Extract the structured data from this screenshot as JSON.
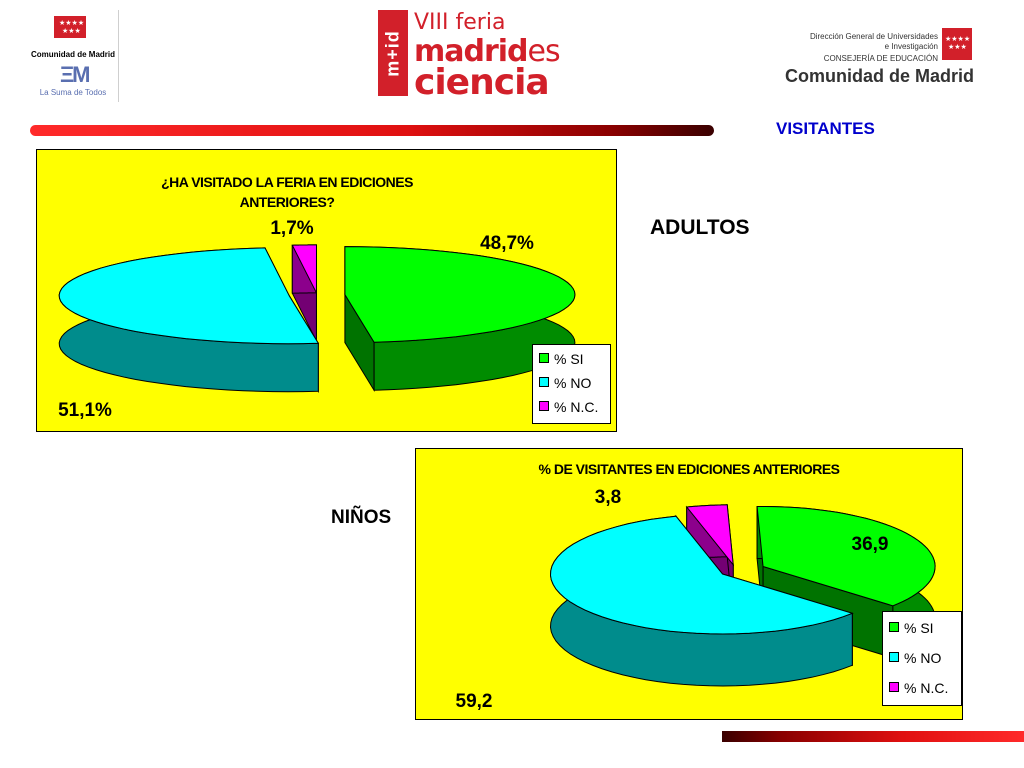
{
  "header": {
    "left_logo": {
      "name": "Comunidad de Madrid",
      "tagline": "La Suma de Todos"
    },
    "center_logo": {
      "vertical": "m+id",
      "line1": "VIII feria",
      "line2_bold": "madrid",
      "line2_light": "es",
      "line3": "ciencia"
    },
    "right_logo": {
      "line1": "Dirección General de Universidades",
      "line2": "e Investigación",
      "line3": "CONSEJERÍA DE EDUCACIÓN",
      "line4": "Comunidad de Madrid"
    }
  },
  "section_title": "VISITANTES",
  "labels": {
    "adults": "ADULTOS",
    "children": "NIÑOS"
  },
  "colors": {
    "accent_red": "#d2202a",
    "chart_bg": "#ffff00",
    "si": "#00ff00",
    "no": "#00ffff",
    "nc": "#ff00ff",
    "title_blue": "#0000cc"
  },
  "chart_data": [
    {
      "type": "pie",
      "title_line1": "¿HA VISITADO LA FERIA EN EDICIONES",
      "title_line2": "ANTERIORES?",
      "categories": [
        "% SI",
        "% NO",
        "% N.C."
      ],
      "values": [
        48.7,
        51.1,
        1.7
      ],
      "data_labels": [
        "48,7%",
        "51,1%",
        "1,7%"
      ],
      "legend_position": "bottom-right",
      "style": "3d-exploded"
    },
    {
      "type": "pie",
      "title": "% DE VISITANTES EN EDICIONES ANTERIORES",
      "categories": [
        "% SI",
        "% NO",
        "% N.C."
      ],
      "values": [
        36.9,
        59.2,
        3.8
      ],
      "data_labels": [
        "36,9",
        "59,2",
        "3,8"
      ],
      "legend_position": "bottom-right",
      "style": "3d-exploded"
    }
  ]
}
